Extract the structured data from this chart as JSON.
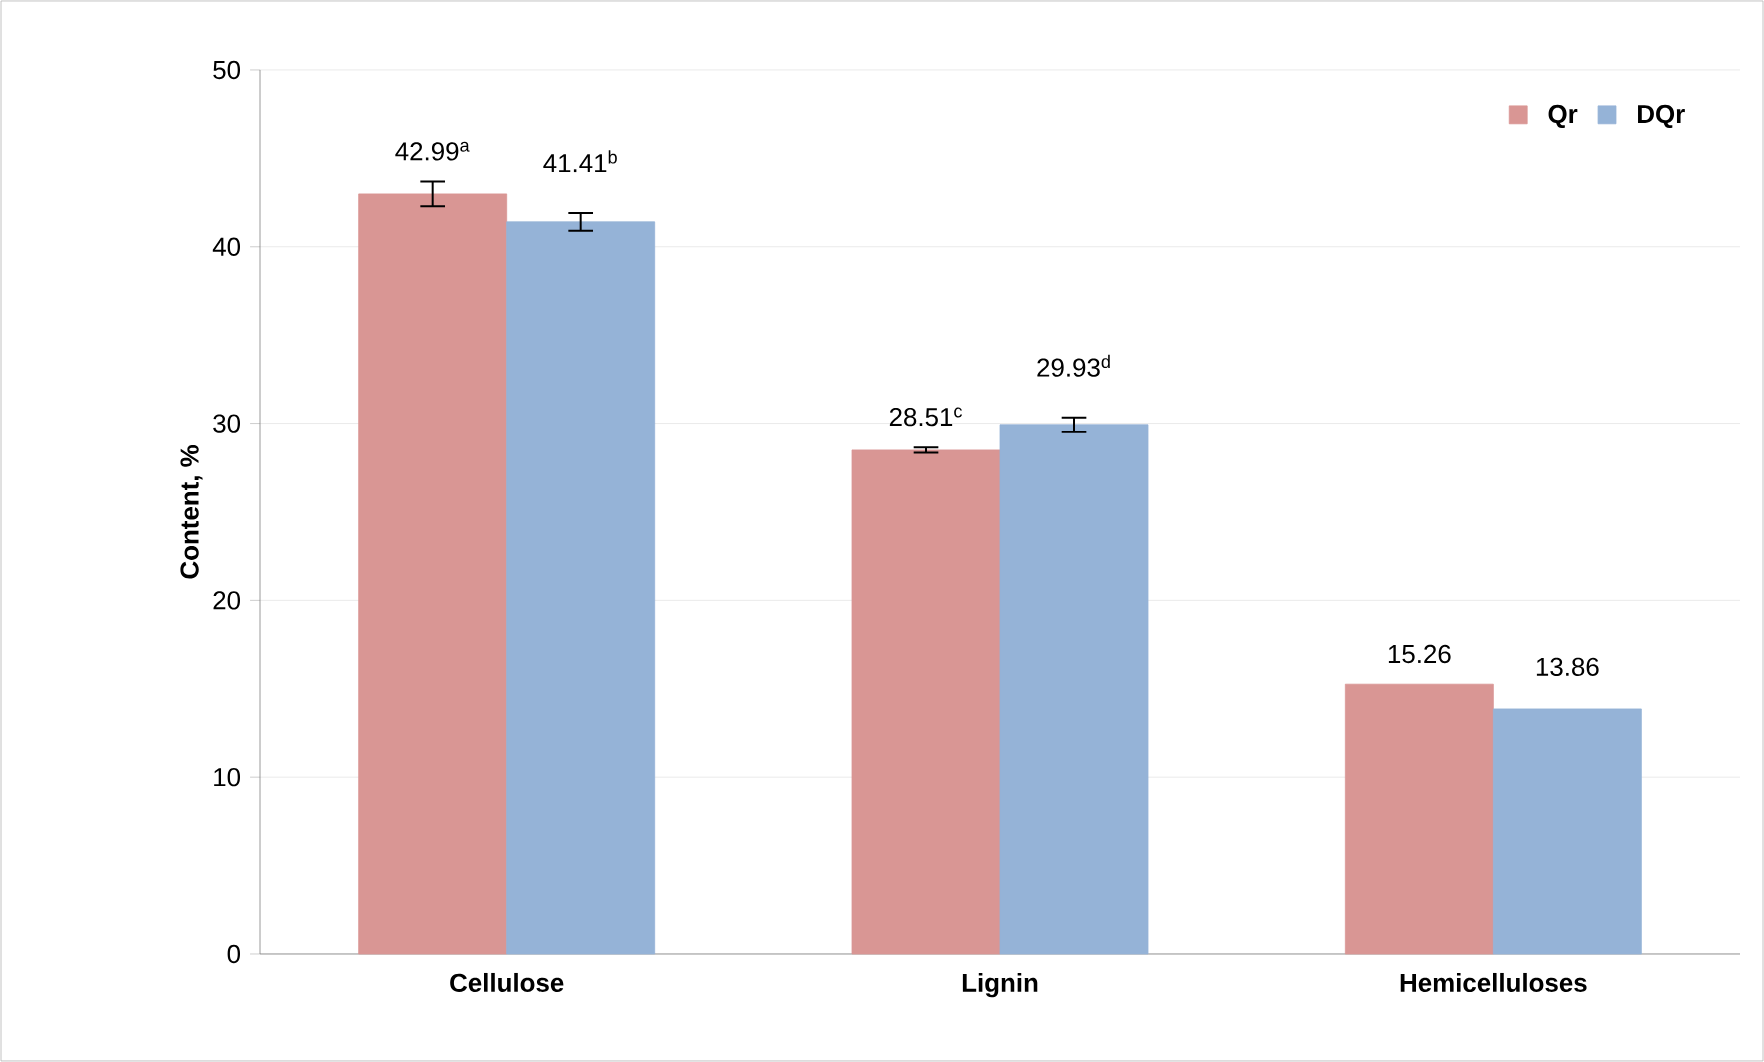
{
  "chart_data": {
    "type": "bar",
    "ylabel": "Content, %",
    "categories": [
      "Cellulose",
      "Lignin",
      "Hemicelluloses"
    ],
    "series": [
      {
        "name": "Qr",
        "color": "#d99694",
        "values": [
          42.99,
          28.51,
          15.26
        ],
        "errors": [
          0.7,
          0.15,
          null
        ],
        "value_labels": [
          "42.99$^{a}$",
          "28.51$^{c}$",
          "15.26"
        ]
      },
      {
        "name": "DQr",
        "color": "#95b3d7",
        "values": [
          41.41,
          29.93,
          13.86
        ],
        "errors": [
          0.5,
          0.4,
          null
        ],
        "value_labels": [
          "41.41$^{b}$",
          "29.93$^{d}$",
          "13.86"
        ]
      }
    ],
    "ylim": [
      0,
      50
    ],
    "yticks": [
      0,
      10,
      20,
      30,
      40,
      50
    ],
    "grid": "y",
    "legend": "top right"
  }
}
